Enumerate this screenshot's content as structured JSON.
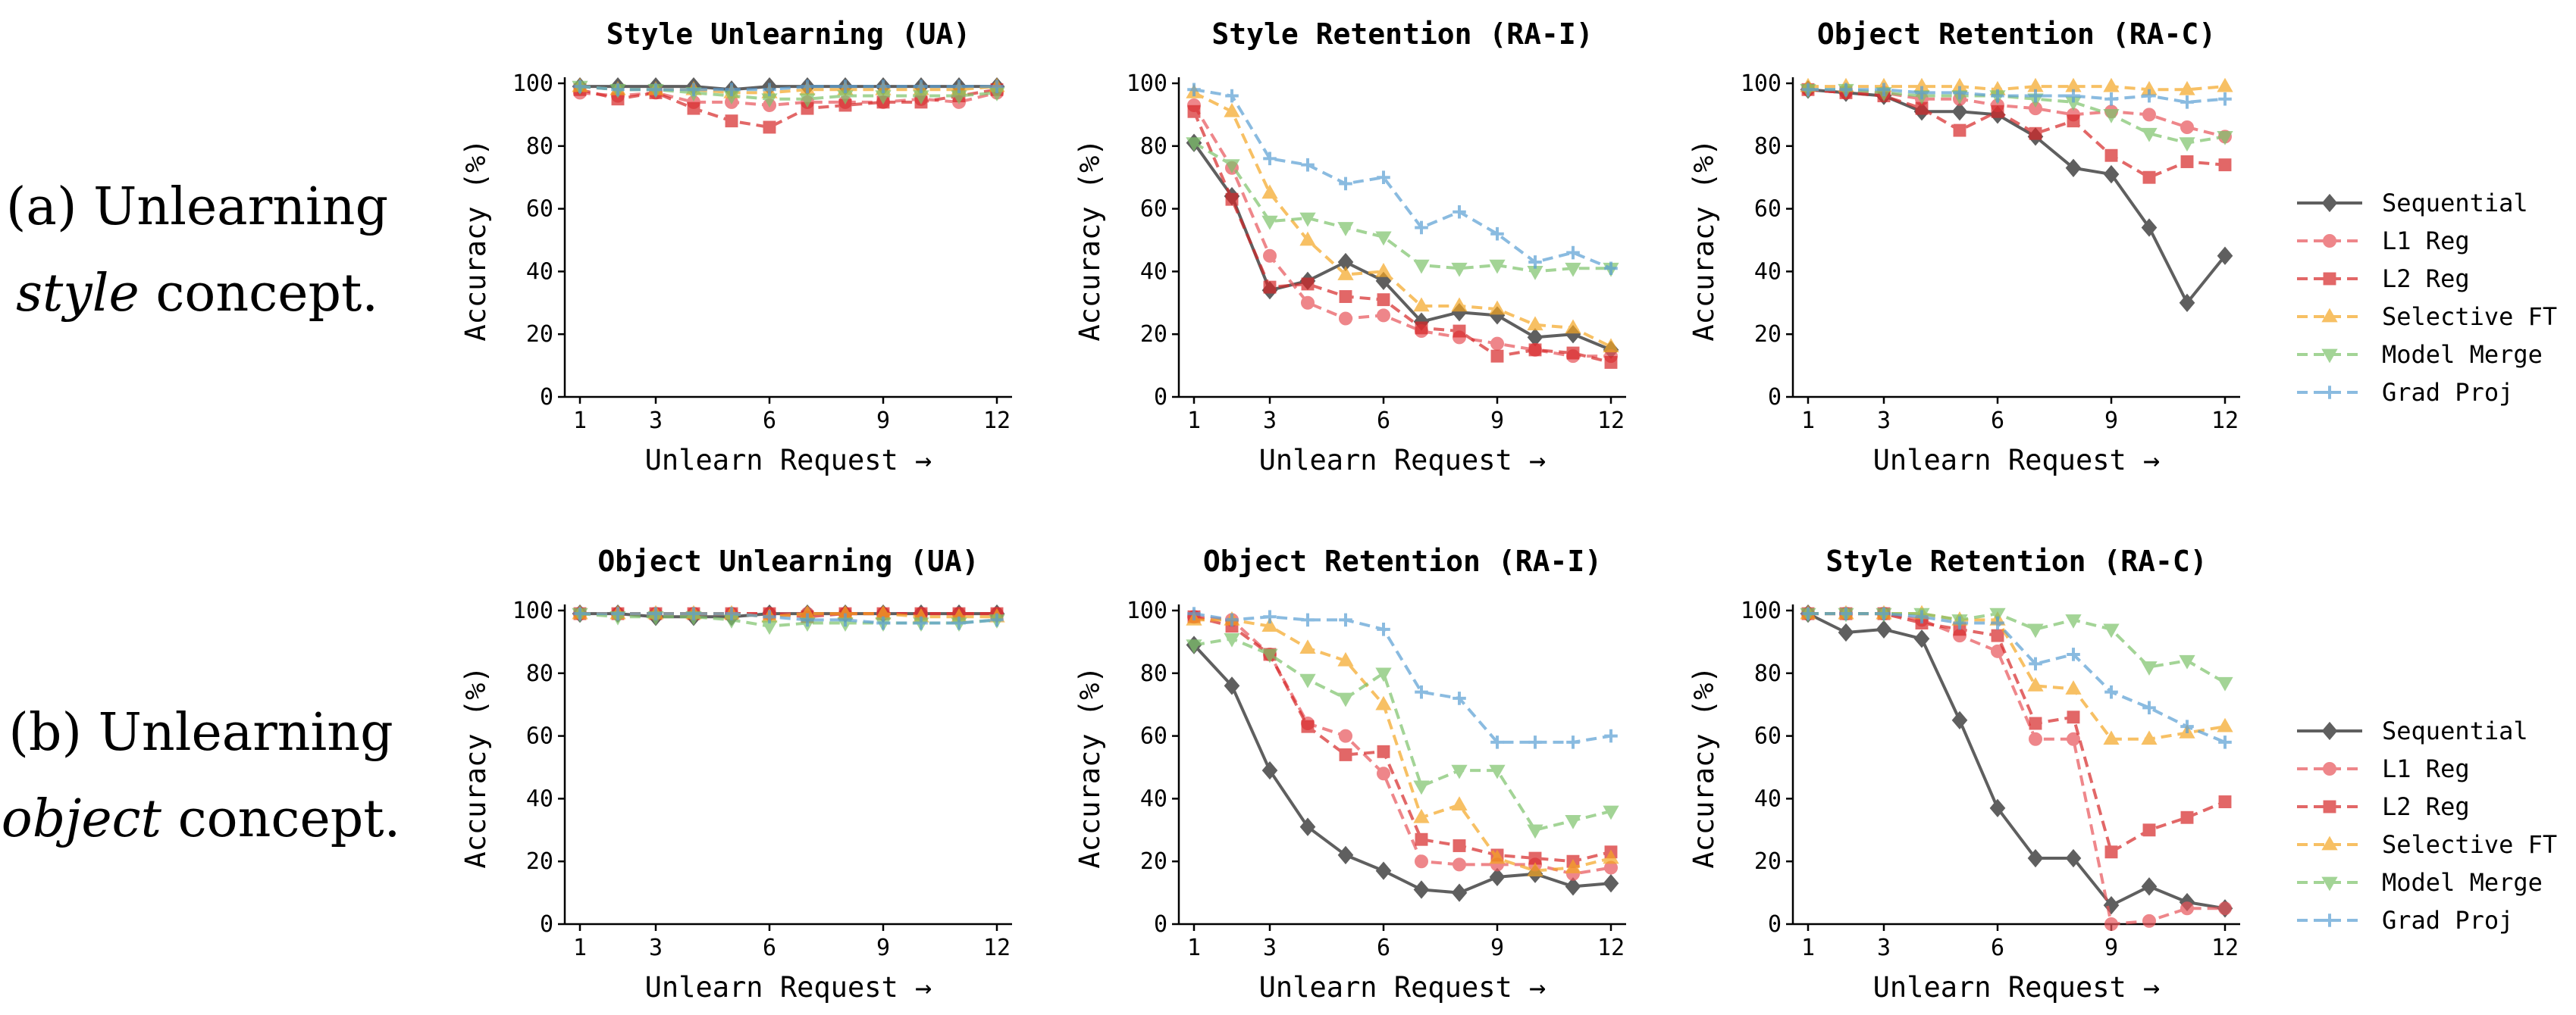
{
  "row_labels": [
    {
      "prefix": "(a) Unlearning",
      "emph": "style",
      "suffix": " concept."
    },
    {
      "prefix": "(b) Unlearning",
      "emph": "object",
      "suffix": " concept."
    }
  ],
  "series_styles": [
    {
      "name": "Sequential",
      "color": "#444444",
      "marker": "diamond",
      "dash": "solid"
    },
    {
      "name": "L1 Reg",
      "color": "#e8545a",
      "marker": "circle",
      "dash": "dashed"
    },
    {
      "name": "L2 Reg",
      "color": "#d62728",
      "marker": "square",
      "dash": "dashed"
    },
    {
      "name": "Selective FT",
      "color": "#f5a623",
      "marker": "triangle-up",
      "dash": "dashed"
    },
    {
      "name": "Model Merge",
      "color": "#7dc36b",
      "marker": "triangle-down",
      "dash": "dashed"
    },
    {
      "name": "Grad Proj",
      "color": "#5a9fd4",
      "marker": "plus",
      "dash": "dashed"
    }
  ],
  "chart_data": [
    {
      "type": "line",
      "title": "Style Unlearning (UA)",
      "xlabel": "Unlearn Request →",
      "ylabel": "Accuracy (%)",
      "x": [
        1,
        2,
        3,
        4,
        5,
        6,
        7,
        8,
        9,
        10,
        11,
        12
      ],
      "xticks": [
        1,
        3,
        6,
        9,
        12
      ],
      "yticks": [
        0,
        20,
        40,
        60,
        80,
        100
      ],
      "ylim": [
        0,
        100
      ],
      "series": [
        {
          "name": "Sequential",
          "values": [
            99,
            99,
            99,
            99,
            98,
            99,
            99,
            99,
            99,
            99,
            99,
            99
          ]
        },
        {
          "name": "L1 Reg",
          "values": [
            97,
            96,
            97,
            94,
            94,
            93,
            94,
            94,
            94,
            95,
            94,
            97
          ]
        },
        {
          "name": "L2 Reg",
          "values": [
            98,
            95,
            97,
            92,
            88,
            86,
            92,
            93,
            94,
            94,
            96,
            98
          ]
        },
        {
          "name": "Selective FT",
          "values": [
            99,
            98,
            98,
            98,
            97,
            97,
            98,
            98,
            98,
            98,
            98,
            99
          ]
        },
        {
          "name": "Model Merge",
          "values": [
            99,
            98,
            98,
            97,
            96,
            95,
            95,
            96,
            96,
            96,
            96,
            97
          ]
        },
        {
          "name": "Grad Proj",
          "values": [
            99,
            98,
            98,
            98,
            98,
            98,
            99,
            99,
            99,
            99,
            99,
            99
          ]
        }
      ]
    },
    {
      "type": "line",
      "title": "Style Retention (RA-I)",
      "xlabel": "Unlearn Request →",
      "ylabel": "Accuracy (%)",
      "x": [
        1,
        2,
        3,
        4,
        5,
        6,
        7,
        8,
        9,
        10,
        11,
        12
      ],
      "xticks": [
        1,
        3,
        6,
        9,
        12
      ],
      "yticks": [
        0,
        20,
        40,
        60,
        80,
        100
      ],
      "ylim": [
        0,
        100
      ],
      "series": [
        {
          "name": "Sequential",
          "values": [
            81,
            64,
            34,
            37,
            43,
            37,
            24,
            27,
            26,
            19,
            20,
            15
          ]
        },
        {
          "name": "L1 Reg",
          "values": [
            93,
            73,
            45,
            30,
            25,
            26,
            21,
            19,
            17,
            15,
            13,
            13
          ]
        },
        {
          "name": "L2 Reg",
          "values": [
            91,
            63,
            35,
            36,
            32,
            31,
            22,
            21,
            13,
            15,
            14,
            11
          ]
        },
        {
          "name": "Selective FT",
          "values": [
            97,
            91,
            65,
            50,
            39,
            40,
            29,
            29,
            28,
            23,
            22,
            16
          ]
        },
        {
          "name": "Model Merge",
          "values": [
            81,
            74,
            56,
            57,
            54,
            51,
            42,
            41,
            42,
            40,
            41,
            41
          ]
        },
        {
          "name": "Grad Proj",
          "values": [
            98,
            96,
            76,
            74,
            68,
            70,
            54,
            59,
            52,
            43,
            46,
            41
          ]
        }
      ]
    },
    {
      "type": "line",
      "title": "Object Retention (RA-C)",
      "xlabel": "Unlearn Request →",
      "ylabel": "Accuracy (%)",
      "x": [
        1,
        2,
        3,
        4,
        5,
        6,
        7,
        8,
        9,
        10,
        11,
        12
      ],
      "xticks": [
        1,
        3,
        6,
        9,
        12
      ],
      "yticks": [
        0,
        20,
        40,
        60,
        80,
        100
      ],
      "ylim": [
        0,
        100
      ],
      "series": [
        {
          "name": "Sequential",
          "values": [
            98,
            97,
            96,
            91,
            91,
            90,
            83,
            73,
            71,
            54,
            30,
            45
          ]
        },
        {
          "name": "L1 Reg",
          "values": [
            98,
            97,
            97,
            95,
            95,
            93,
            92,
            90,
            91,
            90,
            86,
            83
          ]
        },
        {
          "name": "L2 Reg",
          "values": [
            98,
            97,
            96,
            92,
            85,
            91,
            84,
            88,
            77,
            70,
            75,
            74
          ]
        },
        {
          "name": "Selective FT",
          "values": [
            99,
            99,
            99,
            99,
            99,
            98,
            99,
            99,
            99,
            98,
            98,
            99
          ]
        },
        {
          "name": "Model Merge",
          "values": [
            98,
            98,
            97,
            96,
            96,
            96,
            95,
            94,
            90,
            84,
            81,
            83
          ]
        },
        {
          "name": "Grad Proj",
          "values": [
            98,
            98,
            98,
            97,
            97,
            96,
            96,
            96,
            95,
            96,
            94,
            95
          ]
        }
      ]
    },
    {
      "type": "line",
      "title": "Object Unlearning (UA)",
      "xlabel": "Unlearn Request →",
      "ylabel": "Accuracy (%)",
      "x": [
        1,
        2,
        3,
        4,
        5,
        6,
        7,
        8,
        9,
        10,
        11,
        12
      ],
      "xticks": [
        1,
        3,
        6,
        9,
        12
      ],
      "yticks": [
        0,
        20,
        40,
        60,
        80,
        100
      ],
      "ylim": [
        0,
        100
      ],
      "series": [
        {
          "name": "Sequential",
          "values": [
            99,
            99,
            98,
            98,
            98,
            99,
            99,
            99,
            99,
            99,
            99,
            99
          ]
        },
        {
          "name": "L1 Reg",
          "values": [
            99,
            99,
            99,
            99,
            99,
            99,
            99,
            99,
            99,
            99,
            99,
            99
          ]
        },
        {
          "name": "L2 Reg",
          "values": [
            99,
            99,
            99,
            99,
            99,
            99,
            98,
            99,
            99,
            99,
            99,
            99
          ]
        },
        {
          "name": "Selective FT",
          "values": [
            99,
            99,
            99,
            99,
            99,
            98,
            99,
            99,
            99,
            98,
            98,
            98
          ]
        },
        {
          "name": "Model Merge",
          "values": [
            99,
            98,
            98,
            98,
            97,
            95,
            96,
            96,
            96,
            96,
            96,
            97
          ]
        },
        {
          "name": "Grad Proj",
          "values": [
            99,
            99,
            99,
            99,
            99,
            98,
            97,
            97,
            96,
            96,
            96,
            97
          ]
        }
      ]
    },
    {
      "type": "line",
      "title": "Object Retention (RA-I)",
      "xlabel": "Unlearn Request →",
      "ylabel": "Accuracy (%)",
      "x": [
        1,
        2,
        3,
        4,
        5,
        6,
        7,
        8,
        9,
        10,
        11,
        12
      ],
      "xticks": [
        1,
        3,
        6,
        9,
        12
      ],
      "yticks": [
        0,
        20,
        40,
        60,
        80,
        100
      ],
      "ylim": [
        0,
        100
      ],
      "series": [
        {
          "name": "Sequential",
          "values": [
            89,
            76,
            49,
            31,
            22,
            17,
            11,
            10,
            15,
            16,
            12,
            13
          ]
        },
        {
          "name": "L1 Reg",
          "values": [
            98,
            97,
            86,
            64,
            60,
            48,
            20,
            19,
            19,
            19,
            16,
            18
          ]
        },
        {
          "name": "L2 Reg",
          "values": [
            98,
            95,
            86,
            63,
            54,
            55,
            27,
            25,
            22,
            21,
            20,
            23
          ]
        },
        {
          "name": "Selective FT",
          "values": [
            97,
            97,
            95,
            88,
            84,
            70,
            34,
            38,
            21,
            17,
            18,
            21
          ]
        },
        {
          "name": "Model Merge",
          "values": [
            89,
            91,
            86,
            78,
            72,
            80,
            44,
            49,
            49,
            30,
            33,
            36
          ]
        },
        {
          "name": "Grad Proj",
          "values": [
            99,
            97,
            98,
            97,
            97,
            94,
            74,
            72,
            58,
            58,
            58,
            60
          ]
        }
      ]
    },
    {
      "type": "line",
      "title": "Style Retention (RA-C)",
      "xlabel": "Unlearn Request →",
      "ylabel": "Accuracy (%)",
      "x": [
        1,
        2,
        3,
        4,
        5,
        6,
        7,
        8,
        9,
        10,
        11,
        12
      ],
      "xticks": [
        1,
        3,
        6,
        9,
        12
      ],
      "yticks": [
        0,
        20,
        40,
        60,
        80,
        100
      ],
      "ylim": [
        0,
        100
      ],
      "series": [
        {
          "name": "Sequential",
          "values": [
            99,
            93,
            94,
            91,
            65,
            37,
            21,
            21,
            6,
            12,
            7,
            5
          ]
        },
        {
          "name": "L1 Reg",
          "values": [
            99,
            99,
            99,
            97,
            92,
            87,
            59,
            59,
            0,
            1,
            5,
            5
          ]
        },
        {
          "name": "L2 Reg",
          "values": [
            99,
            99,
            99,
            96,
            94,
            92,
            64,
            66,
            23,
            30,
            34,
            39
          ]
        },
        {
          "name": "Selective FT",
          "values": [
            99,
            99,
            99,
            99,
            97,
            97,
            76,
            75,
            59,
            59,
            61,
            63
          ]
        },
        {
          "name": "Model Merge",
          "values": [
            99,
            99,
            99,
            99,
            97,
            99,
            94,
            97,
            94,
            82,
            84,
            77
          ]
        },
        {
          "name": "Grad Proj",
          "values": [
            99,
            99,
            99,
            98,
            96,
            96,
            83,
            86,
            74,
            69,
            63,
            58
          ]
        }
      ]
    }
  ]
}
